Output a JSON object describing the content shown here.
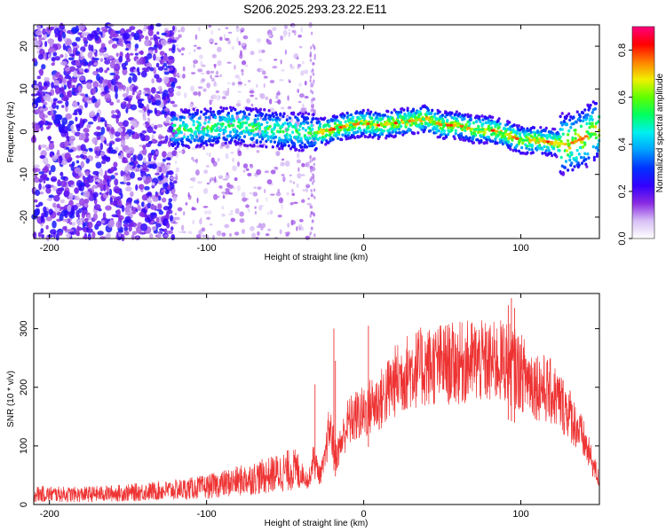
{
  "title": "S206.2025.293.23.22.E11",
  "chart_data": [
    {
      "type": "heatmap",
      "name": "spectrogram",
      "xlabel": "Height of straight line (km)",
      "ylabel": "Frequency (Hz)",
      "xlim": [
        -210,
        150
      ],
      "ylim": [
        -25,
        25
      ],
      "xticks": [
        -200,
        -100,
        0,
        100
      ],
      "yticks": [
        -20,
        -10,
        0,
        10,
        20
      ],
      "xtick_labels": [
        "-200",
        "-100",
        "0",
        "100"
      ],
      "ytick_labels": [
        "-20",
        "-10",
        "0",
        "10",
        "20"
      ],
      "colorbar": {
        "label": "Normalized spectral amplitude",
        "range": [
          0.0,
          0.9
        ],
        "ticks": [
          0.0,
          0.2,
          0.4,
          0.6,
          0.8
        ],
        "tick_labels": [
          "0.0",
          "0.2",
          "0.4",
          "0.6",
          "0.8"
        ],
        "colormap": [
          "#ffffff",
          "#d7c0f5",
          "#8a2be2",
          "#3300ff",
          "#0033ff",
          "#00a0ff",
          "#00f0f0",
          "#00ff60",
          "#60ff00",
          "#f0f000",
          "#ff8000",
          "#ff0000",
          "#ff0080"
        ]
      },
      "ridge_x": [
        -120,
        -100,
        -80,
        -60,
        -40,
        -30,
        -20,
        -10,
        0,
        10,
        20,
        30,
        40,
        50,
        60,
        70,
        80,
        90,
        100,
        110,
        120,
        130,
        140,
        150
      ],
      "ridge_y": [
        0.5,
        1,
        1.5,
        0.5,
        0,
        -0.2,
        0.5,
        1.5,
        2,
        1.5,
        2,
        2.5,
        3,
        1.5,
        1.5,
        0.5,
        0.5,
        -0.5,
        -2,
        -2,
        -2.5,
        -3,
        -1.5,
        1
      ],
      "noise_region_x": [
        -210,
        -120
      ]
    },
    {
      "type": "line",
      "name": "snr",
      "xlabel": "Height of straight line (km)",
      "ylabel": "SNR (10 * v/v)",
      "xlim": [
        -210,
        150
      ],
      "ylim": [
        0,
        360
      ],
      "xticks": [
        -200,
        -100,
        0,
        100
      ],
      "yticks": [
        0,
        100,
        200,
        300
      ],
      "xtick_labels": [
        "-200",
        "-100",
        "0",
        "100"
      ],
      "ytick_labels": [
        "0",
        "100",
        "200",
        "300"
      ],
      "color": "#ee3333",
      "envelope_x": [
        -210,
        -180,
        -150,
        -120,
        -100,
        -80,
        -60,
        -45,
        -40,
        -35,
        -32,
        -28,
        -25,
        -22,
        -20,
        -18,
        -15,
        -10,
        -5,
        0,
        5,
        10,
        20,
        30,
        40,
        50,
        60,
        70,
        80,
        90,
        100,
        110,
        120,
        130,
        140,
        150
      ],
      "envelope_y": [
        18,
        17,
        20,
        25,
        30,
        40,
        50,
        60,
        55,
        40,
        80,
        50,
        70,
        130,
        115,
        80,
        100,
        140,
        150,
        155,
        170,
        175,
        210,
        230,
        235,
        240,
        240,
        245,
        240,
        245,
        225,
        205,
        190,
        160,
        110,
        40
      ],
      "spikes_x": [
        -31,
        -19,
        -18,
        3,
        92,
        94,
        96
      ],
      "spikes_y": [
        205,
        300,
        245,
        305,
        340,
        352,
        335
      ]
    }
  ]
}
